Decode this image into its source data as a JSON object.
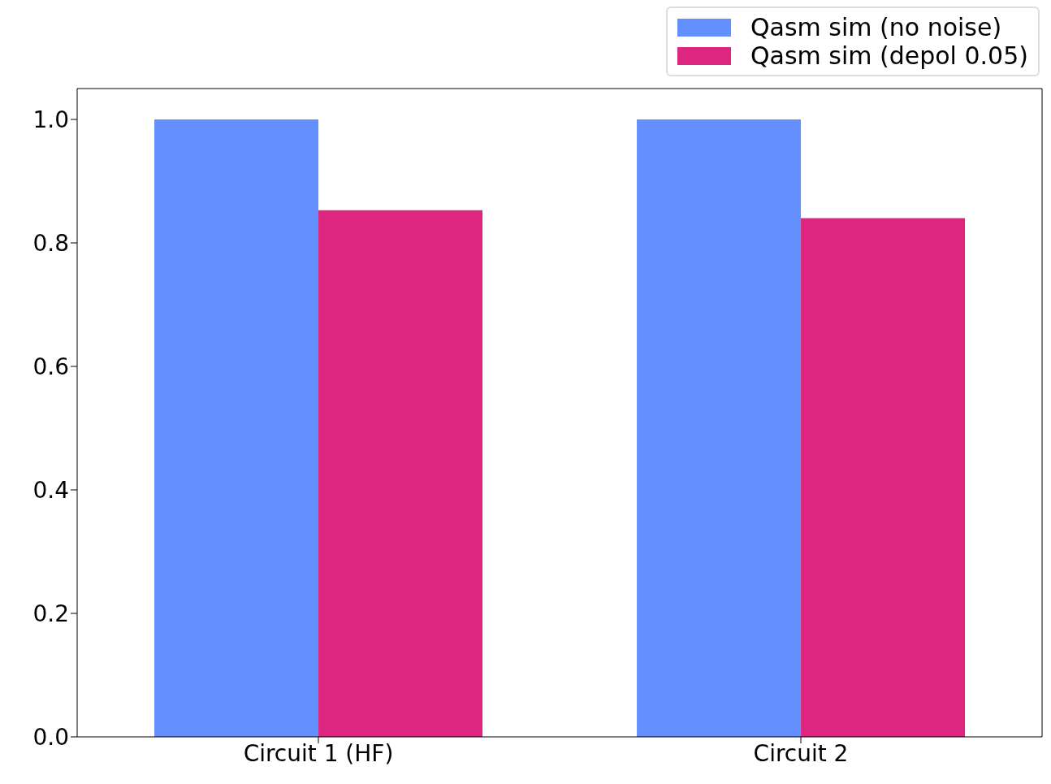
{
  "chart_data": {
    "type": "bar",
    "categories": [
      "Circuit 1 (HF)",
      "Circuit 2"
    ],
    "series": [
      {
        "name": "Qasm sim (no noise)",
        "color": "#648fff",
        "values": [
          1.0,
          1.0
        ]
      },
      {
        "name": "Qasm sim (depol 0.05)",
        "color": "#dc267f",
        "values": [
          0.853,
          0.84
        ]
      }
    ],
    "ylim": [
      0,
      1.05
    ],
    "yticks": [
      {
        "value": 0,
        "label": "0.0"
      },
      0.2,
      0.4,
      0.6,
      0.8,
      {
        "value": 1,
        "label": "1.0"
      }
    ],
    "grid": false,
    "legend": "top right"
  }
}
